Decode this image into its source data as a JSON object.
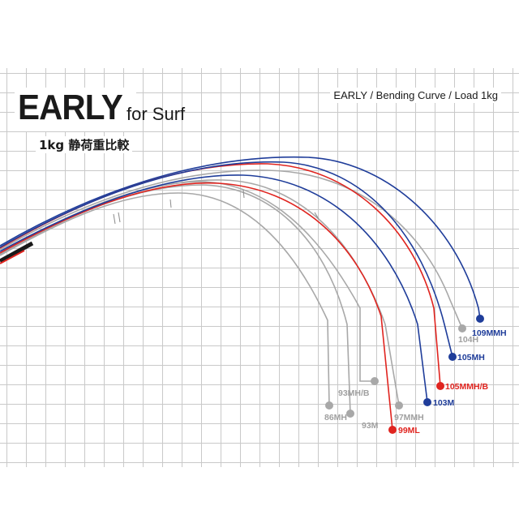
{
  "header": {
    "title": "EARLY",
    "title_suffix": "for Surf",
    "subtitle": "1kg 静荷重比較",
    "caption": "EARLY / Bending Curve / Load 1kg"
  },
  "colors": {
    "gray": "#a8a8a8",
    "red": "#e0241f",
    "blue": "#1f3d9a",
    "label_gray": "#a0a0a0"
  },
  "rods": [
    {
      "name": "86MH",
      "color": "gray"
    },
    {
      "name": "93M",
      "color": "gray"
    },
    {
      "name": "93MH/B",
      "color": "gray"
    },
    {
      "name": "97MMH",
      "color": "gray"
    },
    {
      "name": "99ML",
      "color": "red"
    },
    {
      "name": "103M",
      "color": "blue"
    },
    {
      "name": "104H",
      "color": "gray"
    },
    {
      "name": "105MMH/B",
      "color": "red"
    },
    {
      "name": "105MH",
      "color": "blue"
    },
    {
      "name": "109MMH",
      "color": "blue"
    }
  ]
}
